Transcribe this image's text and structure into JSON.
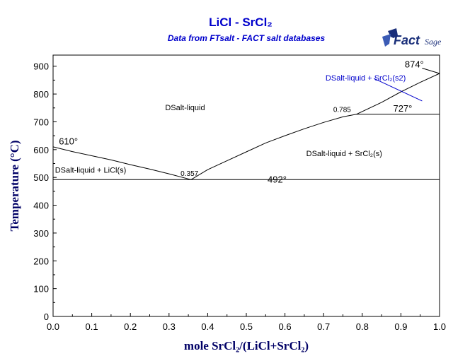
{
  "chart_data": {
    "type": "line",
    "title": "LiCl - SrCl₂",
    "subtitle": "Data from FTsalt - FACT salt databases",
    "xlabel": "mole SrCl₂/(LiCl+SrCl₂)",
    "ylabel": "Temperature (°C)",
    "xlim": [
      0,
      1
    ],
    "ylim": [
      0,
      940
    ],
    "xticks": [
      "0.0",
      "0.1",
      "0.2",
      "0.3",
      "0.4",
      "0.5",
      "0.6",
      "0.7",
      "0.8",
      "0.9",
      "1.0"
    ],
    "yticks": [
      "0",
      "100",
      "200",
      "300",
      "400",
      "500",
      "600",
      "700",
      "800",
      "900"
    ],
    "grid": false,
    "logo": {
      "main": "FactSage",
      "brand_color": "#1a2f7a"
    },
    "series": [
      {
        "key": "liquidus_licl",
        "color": "#000000",
        "x": [
          0.0,
          0.05,
          0.1,
          0.15,
          0.2,
          0.25,
          0.3,
          0.357
        ],
        "y": [
          610,
          593,
          578,
          563,
          546,
          530,
          513,
          492
        ]
      },
      {
        "key": "liquidus_srcl2",
        "color": "#000000",
        "x": [
          0.357,
          0.4,
          0.45,
          0.5,
          0.55,
          0.6,
          0.65,
          0.7,
          0.75,
          0.785,
          0.85,
          0.9,
          0.95,
          1.0
        ],
        "y": [
          492,
          528,
          560,
          592,
          624,
          650,
          675,
          698,
          718,
          727,
          770,
          808,
          842,
          874
        ]
      },
      {
        "key": "eutectic_line",
        "color": "#000000",
        "x": [
          0.0,
          1.0
        ],
        "y": [
          492,
          492
        ]
      },
      {
        "key": "peritectic_line",
        "color": "#000000",
        "x": [
          0.785,
          1.0
        ],
        "y": [
          727,
          727
        ]
      },
      {
        "key": "upper_line",
        "color": "#000000",
        "x": [
          0.955,
          1.0
        ],
        "y": [
          893,
          874
        ]
      },
      {
        "key": "s2_arrow",
        "color": "#0000cc",
        "x": [
          0.83,
          0.955
        ],
        "y": [
          856,
          775
        ]
      }
    ],
    "annotations": [
      {
        "text": "610°",
        "x": 0.015,
        "y": 618,
        "cls": "temp-label"
      },
      {
        "text": "492°",
        "x": 0.555,
        "y": 482,
        "cls": "temp-label"
      },
      {
        "text": "727°",
        "x": 0.88,
        "y": 737,
        "cls": "temp-label"
      },
      {
        "text": "874°",
        "x": 0.91,
        "y": 896,
        "cls": "temp-label"
      },
      {
        "text": "0.357",
        "x": 0.33,
        "y": 505,
        "cls": "point-label"
      },
      {
        "text": "0.785",
        "x": 0.725,
        "y": 735,
        "cls": "point-label"
      },
      {
        "text": "DSalt-liquid",
        "x": 0.29,
        "y": 742,
        "cls": "region"
      },
      {
        "text": "DSalt-liquid + LiCl(s)",
        "x": 0.005,
        "y": 517,
        "cls": "region"
      },
      {
        "text": "DSalt-liquid + SrCl₂(s)",
        "x": 0.655,
        "y": 577,
        "cls": "region"
      },
      {
        "text": "DSalt-liquid + SrCl₂(s2)",
        "x": 0.705,
        "y": 848,
        "cls": "region-blue"
      }
    ]
  }
}
